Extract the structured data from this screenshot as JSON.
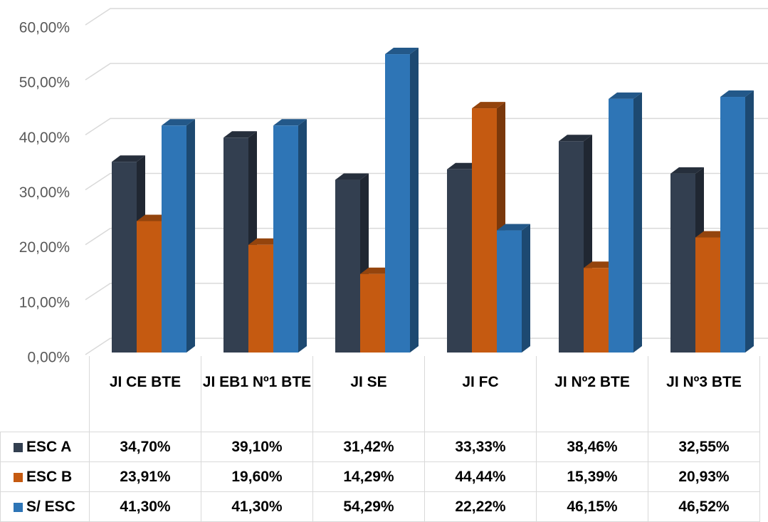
{
  "chart_data": {
    "type": "bar3d",
    "categories": [
      "JI CE BTE",
      "JI EB1 Nº1 BTE",
      "JI SE",
      "JI FC",
      "JI Nº2 BTE",
      "JI Nº3 BTE"
    ],
    "series": [
      {
        "name": "ESC A",
        "color": "#333f50",
        "values": [
          34.7,
          39.1,
          31.42,
          33.33,
          38.46,
          32.55
        ],
        "value_labels": [
          "34,70%",
          "39,10%",
          "31,42%",
          "33,33%",
          "38,46%",
          "32,55%"
        ]
      },
      {
        "name": "ESC B",
        "color": "#c55a11",
        "values": [
          23.91,
          19.6,
          14.29,
          44.44,
          15.39,
          20.93
        ],
        "value_labels": [
          "23,91%",
          "19,60%",
          "14,29%",
          "44,44%",
          "15,39%",
          "20,93%"
        ]
      },
      {
        "name": "S/ ESC",
        "color": "#2e75b6",
        "values": [
          41.3,
          41.3,
          54.29,
          22.22,
          46.15,
          46.52
        ],
        "value_labels": [
          "41,30%",
          "41,30%",
          "54,29%",
          "22,22%",
          "46,15%",
          "46,52%"
        ]
      }
    ],
    "ylim": [
      0,
      60
    ],
    "yticks": [
      {
        "value": 0,
        "label": "0,00%"
      },
      {
        "value": 10,
        "label": "10,00%"
      },
      {
        "value": 20,
        "label": "20,00%"
      },
      {
        "value": 30,
        "label": "30,00%"
      },
      {
        "value": 40,
        "label": "40,00%"
      },
      {
        "value": 50,
        "label": "50,00%"
      },
      {
        "value": 60,
        "label": "60,00%"
      }
    ],
    "grid": true
  }
}
